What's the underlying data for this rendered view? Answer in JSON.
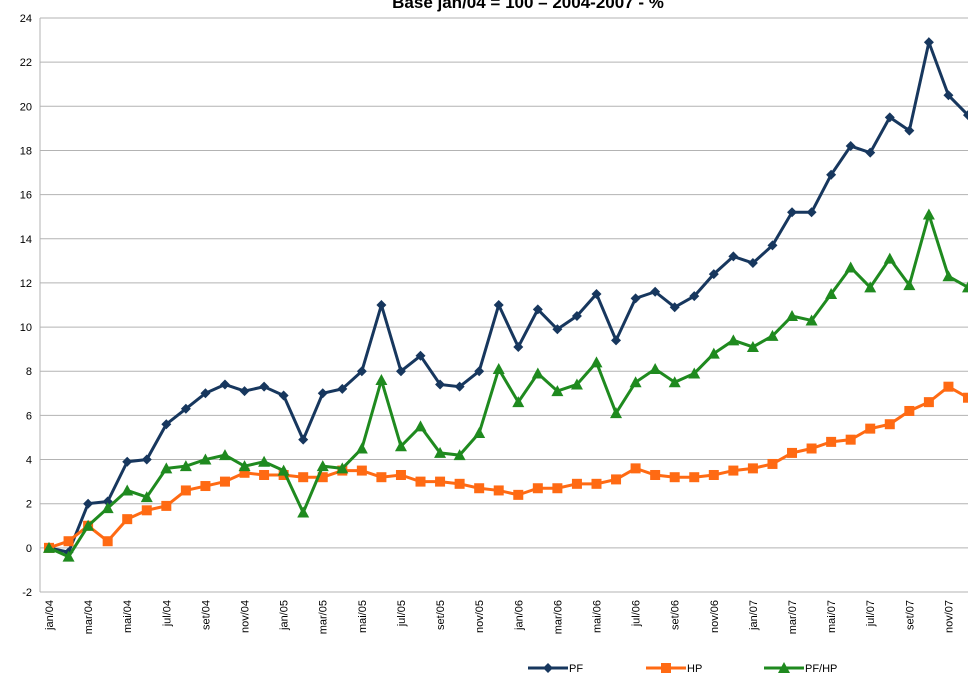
{
  "chart_data": {
    "type": "line",
    "title": "Base jan/04 = 100 – 2004-2007 - %",
    "categories": [
      "jan/04",
      null,
      "mar/04",
      null,
      "mai/04",
      null,
      "jul/04",
      null,
      "set/04",
      null,
      "nov/04",
      null,
      "jan/05",
      null,
      "mar/05",
      null,
      "mai/05",
      null,
      "jul/05",
      null,
      "set/05",
      null,
      "nov/05",
      null,
      "jan/06",
      null,
      "mar/06",
      null,
      "mai/06",
      null,
      "jul/06",
      null,
      "set/06",
      null,
      "nov/06",
      null,
      "jan/07",
      null,
      "mar/07",
      null,
      "mai/07",
      null,
      "jul/07",
      null,
      "set/07",
      null,
      "nov/07",
      null
    ],
    "series": [
      {
        "name": "PF",
        "color": "#17375e",
        "marker": "diamond",
        "values": [
          0,
          -0.2,
          2.0,
          2.1,
          3.9,
          4.0,
          5.6,
          6.3,
          7.0,
          7.4,
          7.1,
          7.3,
          6.9,
          4.9,
          7.0,
          7.2,
          8.0,
          11.0,
          8.0,
          8.7,
          7.4,
          7.3,
          8.0,
          11.0,
          9.1,
          10.8,
          9.9,
          10.5,
          11.5,
          9.4,
          11.3,
          11.6,
          10.9,
          11.4,
          12.4,
          13.2,
          12.9,
          13.7,
          15.2,
          15.2,
          16.9,
          18.2,
          17.9,
          19.5,
          18.9,
          22.9,
          20.5,
          19.6
        ]
      },
      {
        "name": "HP",
        "color": "#ff6a13",
        "marker": "square",
        "values": [
          0,
          0.3,
          1.0,
          0.3,
          1.3,
          1.7,
          1.9,
          2.6,
          2.8,
          3.0,
          3.4,
          3.3,
          3.3,
          3.2,
          3.2,
          3.5,
          3.5,
          3.2,
          3.3,
          3.0,
          3.0,
          2.9,
          2.7,
          2.6,
          2.4,
          2.7,
          2.7,
          2.9,
          2.9,
          3.1,
          3.6,
          3.3,
          3.2,
          3.2,
          3.3,
          3.5,
          3.6,
          3.8,
          4.3,
          4.5,
          4.8,
          4.9,
          5.4,
          5.6,
          6.2,
          6.6,
          7.3,
          6.8
        ]
      },
      {
        "name": "PF/HP",
        "color": "#1f8a1f",
        "marker": "triangle",
        "values": [
          0,
          -0.4,
          1.0,
          1.8,
          2.6,
          2.3,
          3.6,
          3.7,
          4.0,
          4.2,
          3.7,
          3.9,
          3.5,
          1.6,
          3.7,
          3.6,
          4.5,
          7.6,
          4.6,
          5.5,
          4.3,
          4.2,
          5.2,
          8.1,
          6.6,
          7.9,
          7.1,
          7.4,
          8.4,
          6.1,
          7.5,
          8.1,
          7.5,
          7.9,
          8.8,
          9.4,
          9.1,
          9.6,
          10.5,
          10.3,
          11.5,
          12.7,
          11.8,
          13.1,
          11.9,
          15.1,
          12.3,
          11.8
        ]
      }
    ],
    "ylim": [
      -2,
      24
    ],
    "yticks": [
      -2,
      0,
      2,
      4,
      6,
      8,
      10,
      12,
      14,
      16,
      18,
      20,
      22,
      24
    ],
    "grid": true,
    "legend": "bottom"
  }
}
